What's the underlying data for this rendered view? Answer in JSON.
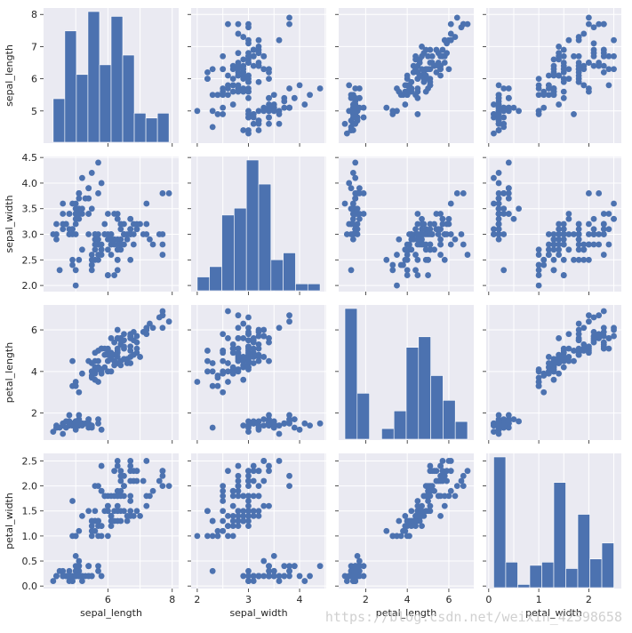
{
  "colors": {
    "panel_background": "#eaeaf2",
    "grid": "#ffffff",
    "marker": "#4c72b0",
    "text": "#262626",
    "watermark": "#c8c8c8"
  },
  "watermark": "https://blog.csdn.net/weixin_42398658",
  "chart_data": {
    "type": "scatter",
    "kind": "pairplot",
    "grid": true,
    "variables": [
      "sepal_length",
      "sepal_width",
      "petal_length",
      "petal_width"
    ],
    "axes": {
      "sepal_length": {
        "lim": [
          4.0,
          8.2
        ],
        "ticks": [
          5,
          6,
          7,
          8
        ]
      },
      "sepal_width": {
        "lim": [
          1.88,
          4.52
        ],
        "ticks": [
          2.0,
          2.5,
          3.0,
          3.5,
          4.0,
          4.5
        ]
      },
      "petal_length": {
        "lim": [
          0.7,
          7.2
        ],
        "ticks": [
          2,
          4,
          6
        ]
      },
      "petal_width": {
        "lim": [
          -0.05,
          2.65
        ],
        "ticks": [
          0.0,
          0.5,
          1.0,
          1.5,
          2.0,
          2.5
        ]
      }
    },
    "x_tick_labels": {
      "sepal_length": [
        "6",
        "8"
      ],
      "sepal_width": [
        "2",
        "3",
        "4"
      ],
      "petal_length": [
        "2",
        "4",
        "6"
      ],
      "petal_width": [
        "0",
        "1",
        "2"
      ]
    },
    "x_tick_values": {
      "sepal_length": [
        6,
        8
      ],
      "sepal_width": [
        2,
        3,
        4
      ],
      "petal_length": [
        2,
        4,
        6
      ],
      "petal_width": [
        0,
        1,
        2
      ]
    },
    "y_tick_labels": {
      "sepal_length": [
        "5",
        "6",
        "7",
        "8"
      ],
      "sepal_width": [
        "2.0",
        "2.5",
        "3.0",
        "3.5",
        "4.0",
        "4.5"
      ],
      "petal_length": [
        "2",
        "4",
        "6"
      ],
      "petal_width": [
        "0.0",
        "0.5",
        "1.0",
        "1.5",
        "2.0",
        "2.5"
      ]
    },
    "histograms": {
      "sepal_length": {
        "bins": [
          4.3,
          4.66,
          5.02,
          5.38,
          5.74,
          6.1,
          6.46,
          6.82,
          7.18,
          7.54,
          7.9
        ],
        "counts": [
          9,
          23,
          14,
          27,
          16,
          26,
          18,
          6,
          5,
          6
        ]
      },
      "sepal_width": {
        "bins": [
          2.0,
          2.24,
          2.48,
          2.72,
          2.96,
          3.2,
          3.44,
          3.68,
          3.92,
          4.16,
          4.4
        ],
        "counts": [
          4,
          7,
          22,
          24,
          38,
          31,
          9,
          11,
          2,
          2
        ]
      },
      "petal_length": {
        "bins": [
          1.0,
          1.59,
          2.18,
          2.77,
          3.36,
          3.95,
          4.54,
          5.13,
          5.72,
          6.31,
          6.9
        ],
        "counts": [
          37,
          13,
          0,
          3,
          8,
          26,
          29,
          18,
          11,
          5
        ]
      },
      "petal_width": {
        "bins": [
          0.1,
          0.34,
          0.58,
          0.82,
          1.06,
          1.3,
          1.54,
          1.78,
          2.02,
          2.26,
          2.5
        ],
        "counts": [
          41,
          8,
          1,
          7,
          8,
          33,
          6,
          23,
          9,
          14
        ]
      }
    },
    "samples": [
      [
        5.1,
        3.5,
        1.4,
        0.2
      ],
      [
        4.9,
        3.0,
        1.4,
        0.2
      ],
      [
        4.7,
        3.2,
        1.3,
        0.2
      ],
      [
        4.6,
        3.1,
        1.5,
        0.2
      ],
      [
        5.0,
        3.6,
        1.4,
        0.2
      ],
      [
        5.4,
        3.9,
        1.7,
        0.4
      ],
      [
        4.6,
        3.4,
        1.4,
        0.3
      ],
      [
        5.0,
        3.4,
        1.5,
        0.2
      ],
      [
        4.4,
        2.9,
        1.4,
        0.2
      ],
      [
        4.9,
        3.1,
        1.5,
        0.1
      ],
      [
        5.4,
        3.7,
        1.5,
        0.2
      ],
      [
        4.8,
        3.4,
        1.6,
        0.2
      ],
      [
        4.8,
        3.0,
        1.4,
        0.1
      ],
      [
        4.3,
        3.0,
        1.1,
        0.1
      ],
      [
        5.8,
        4.0,
        1.2,
        0.2
      ],
      [
        5.7,
        4.4,
        1.5,
        0.4
      ],
      [
        5.4,
        3.9,
        1.3,
        0.4
      ],
      [
        5.1,
        3.5,
        1.4,
        0.3
      ],
      [
        5.7,
        3.8,
        1.7,
        0.3
      ],
      [
        5.1,
        3.8,
        1.5,
        0.3
      ],
      [
        5.4,
        3.4,
        1.7,
        0.2
      ],
      [
        5.1,
        3.7,
        1.5,
        0.4
      ],
      [
        4.6,
        3.6,
        1.0,
        0.2
      ],
      [
        5.1,
        3.3,
        1.7,
        0.5
      ],
      [
        4.8,
        3.4,
        1.9,
        0.2
      ],
      [
        5.0,
        3.0,
        1.6,
        0.2
      ],
      [
        5.0,
        3.4,
        1.6,
        0.4
      ],
      [
        5.2,
        3.5,
        1.5,
        0.2
      ],
      [
        5.2,
        3.4,
        1.4,
        0.2
      ],
      [
        4.7,
        3.2,
        1.6,
        0.2
      ],
      [
        4.8,
        3.1,
        1.6,
        0.2
      ],
      [
        5.4,
        3.4,
        1.5,
        0.4
      ],
      [
        5.2,
        4.1,
        1.5,
        0.1
      ],
      [
        5.5,
        4.2,
        1.4,
        0.2
      ],
      [
        4.9,
        3.1,
        1.5,
        0.2
      ],
      [
        5.0,
        3.2,
        1.2,
        0.2
      ],
      [
        5.5,
        3.5,
        1.3,
        0.2
      ],
      [
        4.9,
        3.6,
        1.4,
        0.1
      ],
      [
        4.4,
        3.0,
        1.3,
        0.2
      ],
      [
        5.1,
        3.4,
        1.5,
        0.2
      ],
      [
        5.0,
        3.5,
        1.3,
        0.3
      ],
      [
        4.5,
        2.3,
        1.3,
        0.3
      ],
      [
        4.4,
        3.2,
        1.3,
        0.2
      ],
      [
        5.0,
        3.5,
        1.6,
        0.6
      ],
      [
        5.1,
        3.8,
        1.9,
        0.4
      ],
      [
        4.8,
        3.0,
        1.4,
        0.3
      ],
      [
        5.1,
        3.8,
        1.6,
        0.2
      ],
      [
        4.6,
        3.2,
        1.4,
        0.2
      ],
      [
        5.3,
        3.7,
        1.5,
        0.2
      ],
      [
        5.0,
        3.3,
        1.4,
        0.2
      ],
      [
        7.0,
        3.2,
        4.7,
        1.4
      ],
      [
        6.4,
        3.2,
        4.5,
        1.5
      ],
      [
        6.9,
        3.1,
        4.9,
        1.5
      ],
      [
        5.5,
        2.3,
        4.0,
        1.3
      ],
      [
        6.5,
        2.8,
        4.6,
        1.5
      ],
      [
        5.7,
        2.8,
        4.5,
        1.3
      ],
      [
        6.3,
        3.3,
        4.7,
        1.6
      ],
      [
        4.9,
        2.4,
        3.3,
        1.0
      ],
      [
        6.6,
        2.9,
        4.6,
        1.3
      ],
      [
        5.2,
        2.7,
        3.9,
        1.4
      ],
      [
        5.0,
        2.0,
        3.5,
        1.0
      ],
      [
        5.9,
        3.0,
        4.2,
        1.5
      ],
      [
        6.0,
        2.2,
        4.0,
        1.0
      ],
      [
        6.1,
        2.9,
        4.7,
        1.4
      ],
      [
        5.6,
        2.9,
        3.6,
        1.3
      ],
      [
        6.7,
        3.1,
        4.4,
        1.4
      ],
      [
        5.6,
        3.0,
        4.5,
        1.5
      ],
      [
        5.8,
        2.7,
        4.1,
        1.0
      ],
      [
        6.2,
        2.2,
        4.5,
        1.5
      ],
      [
        5.6,
        2.5,
        3.9,
        1.1
      ],
      [
        5.9,
        3.2,
        4.8,
        1.8
      ],
      [
        6.1,
        2.8,
        4.0,
        1.3
      ],
      [
        6.3,
        2.5,
        4.9,
        1.5
      ],
      [
        6.1,
        2.8,
        4.7,
        1.2
      ],
      [
        6.4,
        2.9,
        4.3,
        1.3
      ],
      [
        6.6,
        3.0,
        4.4,
        1.4
      ],
      [
        6.8,
        2.8,
        4.8,
        1.4
      ],
      [
        6.7,
        3.0,
        5.0,
        1.7
      ],
      [
        6.0,
        2.9,
        4.5,
        1.5
      ],
      [
        5.7,
        2.6,
        3.5,
        1.0
      ],
      [
        5.5,
        2.4,
        3.8,
        1.1
      ],
      [
        5.5,
        2.4,
        3.7,
        1.0
      ],
      [
        5.8,
        2.7,
        3.9,
        1.2
      ],
      [
        6.0,
        2.7,
        5.1,
        1.6
      ],
      [
        5.4,
        3.0,
        4.5,
        1.5
      ],
      [
        6.0,
        3.4,
        4.5,
        1.6
      ],
      [
        6.7,
        3.1,
        4.7,
        1.5
      ],
      [
        6.3,
        2.3,
        4.4,
        1.3
      ],
      [
        5.6,
        3.0,
        4.1,
        1.3
      ],
      [
        5.5,
        2.5,
        4.0,
        1.3
      ],
      [
        5.5,
        2.6,
        4.4,
        1.2
      ],
      [
        6.1,
        3.0,
        4.6,
        1.4
      ],
      [
        5.8,
        2.6,
        4.0,
        1.2
      ],
      [
        5.0,
        2.3,
        3.3,
        1.0
      ],
      [
        5.6,
        2.7,
        4.2,
        1.3
      ],
      [
        5.7,
        3.0,
        4.2,
        1.2
      ],
      [
        5.7,
        2.9,
        4.2,
        1.3
      ],
      [
        6.2,
        2.9,
        4.3,
        1.3
      ],
      [
        5.1,
        2.5,
        3.0,
        1.1
      ],
      [
        5.7,
        2.8,
        4.1,
        1.3
      ],
      [
        6.3,
        3.3,
        6.0,
        2.5
      ],
      [
        5.8,
        2.7,
        5.1,
        1.9
      ],
      [
        7.1,
        3.0,
        5.9,
        2.1
      ],
      [
        6.3,
        2.9,
        5.6,
        1.8
      ],
      [
        6.5,
        3.0,
        5.8,
        2.2
      ],
      [
        7.6,
        3.0,
        6.6,
        2.1
      ],
      [
        4.9,
        2.5,
        4.5,
        1.7
      ],
      [
        7.3,
        2.9,
        6.3,
        1.8
      ],
      [
        6.7,
        2.5,
        5.8,
        1.8
      ],
      [
        7.2,
        3.6,
        6.1,
        2.5
      ],
      [
        6.5,
        3.2,
        5.1,
        2.0
      ],
      [
        6.4,
        2.7,
        5.3,
        1.9
      ],
      [
        6.8,
        3.0,
        5.5,
        2.1
      ],
      [
        5.7,
        2.5,
        5.0,
        2.0
      ],
      [
        5.8,
        2.8,
        5.1,
        2.4
      ],
      [
        6.4,
        3.2,
        5.3,
        2.3
      ],
      [
        6.5,
        3.0,
        5.5,
        1.8
      ],
      [
        7.7,
        3.8,
        6.7,
        2.2
      ],
      [
        7.7,
        2.6,
        6.9,
        2.3
      ],
      [
        6.0,
        2.2,
        5.0,
        1.5
      ],
      [
        6.9,
        3.2,
        5.7,
        2.3
      ],
      [
        5.6,
        2.8,
        4.9,
        2.0
      ],
      [
        7.7,
        2.8,
        6.7,
        2.0
      ],
      [
        6.3,
        2.7,
        4.9,
        1.8
      ],
      [
        6.7,
        3.3,
        5.7,
        2.1
      ],
      [
        7.2,
        3.2,
        6.0,
        1.8
      ],
      [
        6.2,
        2.8,
        4.8,
        1.8
      ],
      [
        6.1,
        3.0,
        4.9,
        1.8
      ],
      [
        6.4,
        2.8,
        5.6,
        2.1
      ],
      [
        7.2,
        3.0,
        5.8,
        1.6
      ],
      [
        7.4,
        2.8,
        6.1,
        1.9
      ],
      [
        7.9,
        3.8,
        6.4,
        2.0
      ],
      [
        6.4,
        2.8,
        5.6,
        2.2
      ],
      [
        6.3,
        2.8,
        5.1,
        1.5
      ],
      [
        6.1,
        2.6,
        5.6,
        1.4
      ],
      [
        7.7,
        3.0,
        6.1,
        2.3
      ],
      [
        6.3,
        3.4,
        5.6,
        2.4
      ],
      [
        6.4,
        3.1,
        5.5,
        1.8
      ],
      [
        6.0,
        3.0,
        4.8,
        1.8
      ],
      [
        6.9,
        3.1,
        5.4,
        2.1
      ],
      [
        6.7,
        3.1,
        5.6,
        2.4
      ],
      [
        6.9,
        3.1,
        5.1,
        2.3
      ],
      [
        5.8,
        2.7,
        5.1,
        1.9
      ],
      [
        6.8,
        3.2,
        5.9,
        2.3
      ],
      [
        6.7,
        3.3,
        5.7,
        2.5
      ],
      [
        6.7,
        3.0,
        5.2,
        2.3
      ],
      [
        6.3,
        2.5,
        5.0,
        1.9
      ],
      [
        6.5,
        3.0,
        5.2,
        2.0
      ],
      [
        6.2,
        3.4,
        5.4,
        2.3
      ],
      [
        5.9,
        3.0,
        5.1,
        1.8
      ]
    ]
  }
}
